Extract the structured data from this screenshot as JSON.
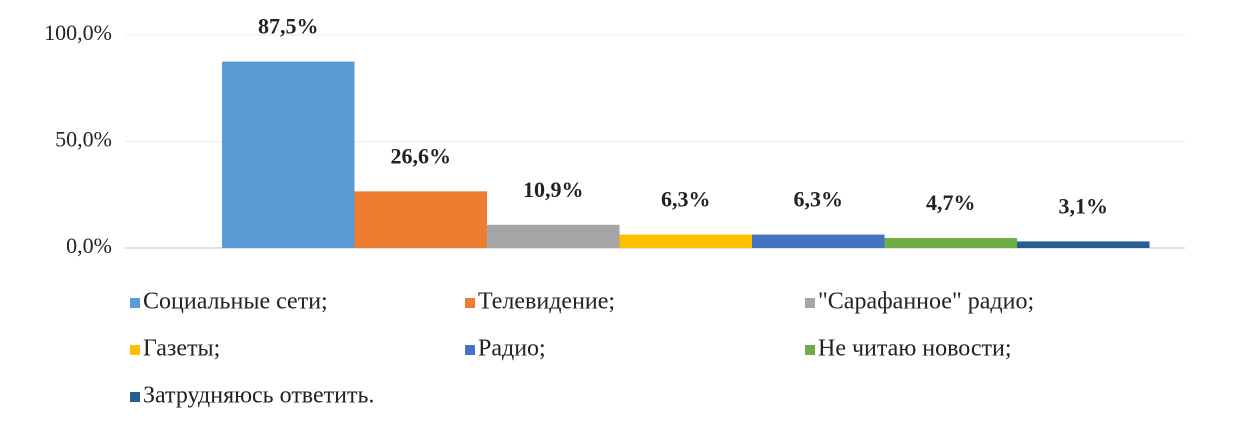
{
  "chart_data": {
    "type": "bar",
    "categories": [
      null
    ],
    "series": [
      {
        "name": "Социальные сети;",
        "color": "#5b9bd5",
        "values": [
          87.5
        ],
        "value_labels": [
          "87,5%"
        ]
      },
      {
        "name": "Телевидение;",
        "color": "#ed7d31",
        "values": [
          26.6
        ],
        "value_labels": [
          "26,6%"
        ]
      },
      {
        "name": "\"Сарафанное\" радио;",
        "color": "#a5a5a5",
        "values": [
          10.9
        ],
        "value_labels": [
          "10,9%"
        ]
      },
      {
        "name": "Газеты;",
        "color": "#ffc000",
        "values": [
          6.3
        ],
        "value_labels": [
          "6,3%"
        ]
      },
      {
        "name": "Радио;",
        "color": "#4472c4",
        "values": [
          6.3
        ],
        "value_labels": [
          "6,3%"
        ]
      },
      {
        "name": "Не читаю новости;",
        "color": "#70ad47",
        "values": [
          4.7
        ],
        "value_labels": [
          "4,7%"
        ]
      },
      {
        "name": "Затрудняюсь ответить.",
        "color": "#255e91",
        "values": [
          3.1
        ],
        "value_labels": [
          "3,1%"
        ]
      }
    ],
    "ylim": [
      0,
      100
    ],
    "yticks": [
      {
        "value": 0,
        "label": "0,0%"
      },
      {
        "value": 50,
        "label": "50,0%"
      },
      {
        "value": 100,
        "label": "100,0%"
      }
    ],
    "grid": true,
    "legend": "bottom"
  }
}
